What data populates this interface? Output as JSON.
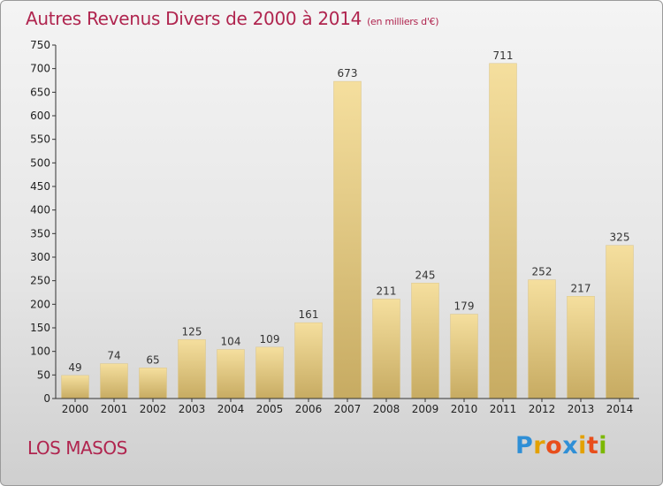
{
  "chart_data": {
    "type": "bar",
    "title": "Autres Revenus Divers de 2000 à 2014",
    "subtitle": "(en milliers d'€)",
    "categories": [
      "2000",
      "2001",
      "2002",
      "2003",
      "2004",
      "2005",
      "2006",
      "2007",
      "2008",
      "2009",
      "2010",
      "2011",
      "2012",
      "2013",
      "2014"
    ],
    "values": [
      49,
      74,
      65,
      125,
      104,
      109,
      161,
      673,
      211,
      245,
      179,
      711,
      252,
      217,
      325
    ],
    "ylim": [
      0,
      750
    ],
    "yticks": [
      0,
      50,
      100,
      150,
      200,
      250,
      300,
      350,
      400,
      450,
      500,
      550,
      600,
      650,
      700,
      750
    ],
    "grid": false,
    "legend": "none"
  },
  "footer": {
    "place": "LOS MASOS"
  },
  "logo": {
    "letters": [
      "P",
      "r",
      "o",
      "x",
      "i",
      "t",
      "i"
    ],
    "colors": [
      "#2f8fd6",
      "#e3a100",
      "#e84e1b",
      "#2f8fd6",
      "#e3a100",
      "#e84e1b",
      "#7cb800"
    ]
  },
  "colors": {
    "title": "#b0254f",
    "bar_light": "#f5df9e",
    "bar_dark": "#c7ab62"
  }
}
